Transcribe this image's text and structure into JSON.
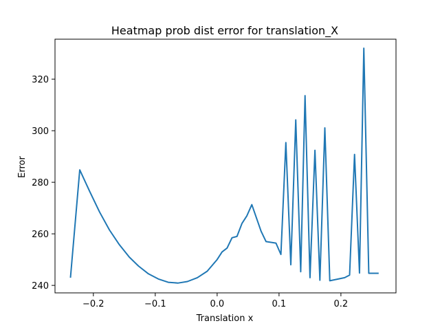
{
  "chart_data": {
    "type": "line",
    "title": "Heatmap prob dist error for translation_X",
    "xlabel": "Translation x",
    "ylabel": "Error",
    "xlim": [
      -0.262,
      0.289
    ],
    "ylim": [
      237.1,
      335.5
    ],
    "xticks": [
      -0.2,
      -0.1,
      0.0,
      0.1,
      0.2
    ],
    "xtick_labels": [
      "−0.2",
      "−0.1",
      "0.0",
      "0.1",
      "0.2"
    ],
    "yticks": [
      240,
      260,
      280,
      300,
      320
    ],
    "ytick_labels": [
      "240",
      "260",
      "280",
      "300",
      "320"
    ],
    "grid": false,
    "line_color": "#1f77b4",
    "series": [
      {
        "x": [
          -0.237,
          -0.222,
          -0.206,
          -0.19,
          -0.174,
          -0.158,
          -0.142,
          -0.127,
          -0.111,
          -0.095,
          -0.079,
          -0.063,
          -0.048,
          -0.032,
          -0.016,
          0.0,
          0.008,
          0.016,
          0.024,
          0.032,
          0.04,
          0.048,
          0.056,
          0.063,
          0.071,
          0.079,
          0.087,
          0.095,
          0.103,
          0.111,
          0.119,
          0.127,
          0.135,
          0.142,
          0.15,
          0.158,
          0.166,
          0.174,
          0.182,
          0.19,
          0.198,
          0.206,
          0.214,
          0.222,
          0.23,
          0.237,
          0.245,
          0.253,
          0.261
        ],
        "y": [
          243,
          284.8,
          276.5,
          268.5,
          261.5,
          255.8,
          251.0,
          247.5,
          244.5,
          242.5,
          241.2,
          240.9,
          241.5,
          243.0,
          245.5,
          250.0,
          253.0,
          254.5,
          258.5,
          259.0,
          264.0,
          267.0,
          271.3,
          266.5,
          261.0,
          257.0,
          256.7,
          256.4,
          252.0,
          295.4,
          248.0,
          304.2,
          245.3,
          313.6,
          243.0,
          292.4,
          242.0,
          301.1,
          241.8,
          242.2,
          242.6,
          243.0,
          244.0,
          290.8,
          244.8,
          332.0,
          244.7,
          244.7,
          244.7
        ]
      }
    ]
  }
}
